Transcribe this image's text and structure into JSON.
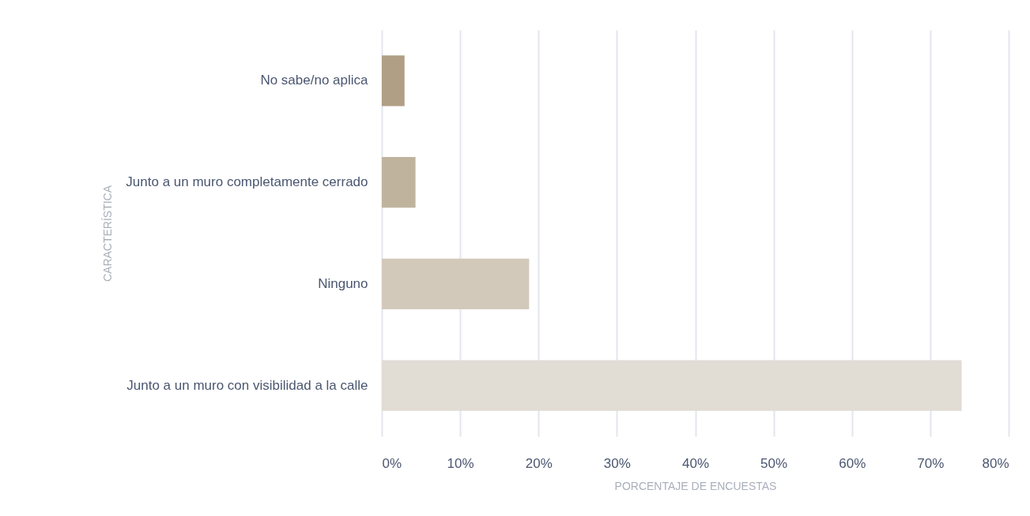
{
  "chart_data": {
    "type": "bar",
    "orientation": "horizontal",
    "xlabel": "PORCENTAJE DE ENCUESTAS",
    "ylabel": "CARACTERÍSTICA",
    "categories": [
      "No sabe/no aplica",
      "Junto a un muro completamente cerrado",
      "Ninguno",
      "Junto a un muro con visibilidad a la calle"
    ],
    "values": [
      2.9,
      4.3,
      18.8,
      74.0
    ],
    "colors": [
      "#b09f84",
      "#c0b39e",
      "#d3c9bb",
      "#e1dcd4"
    ],
    "xlim": [
      0,
      80
    ],
    "xticks": [
      {
        "value": 0,
        "label": "0%"
      },
      {
        "value": 10,
        "label": "10%"
      },
      {
        "value": 20,
        "label": "20%"
      },
      {
        "value": 30,
        "label": "30%"
      },
      {
        "value": 40,
        "label": "40%"
      },
      {
        "value": 50,
        "label": "50%"
      },
      {
        "value": 60,
        "label": "60%"
      },
      {
        "value": 70,
        "label": "70%"
      },
      {
        "value": 80,
        "label": "80%"
      }
    ],
    "grid": "x"
  }
}
